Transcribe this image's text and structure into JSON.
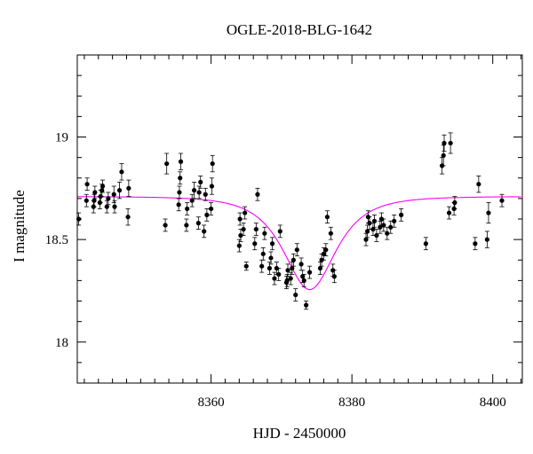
{
  "chart_data": {
    "type": "scatter",
    "title": "OGLE-2018-BLG-1642",
    "xlabel": "HJD - 2450000",
    "ylabel": "I magnitude",
    "xlim": [
      8341.0,
      8404.2
    ],
    "ylim": [
      19.4,
      17.8
    ],
    "y_inverted": true,
    "x_ticks": [
      8360,
      8380,
      8400
    ],
    "x_tick_labels": [
      "8360",
      "8380",
      "8400"
    ],
    "y_ticks": [
      18,
      18.5,
      19
    ],
    "y_tick_labels": [
      "18",
      "18.5",
      "19"
    ],
    "grid": false,
    "marker_color": "#000000",
    "model_color": "#ff00ff",
    "model": {
      "baseline_mag": 18.71,
      "t0": 8374.0,
      "u0": 0.81,
      "tE": 5.0
    },
    "series": [
      {
        "points": [
          [
            8341.2,
            18.6,
            0.03
          ],
          [
            8342.3,
            18.69,
            0.03
          ],
          [
            8342.4,
            18.77,
            0.03
          ],
          [
            8343.3,
            18.66,
            0.03
          ],
          [
            8343.4,
            18.69,
            0.03
          ],
          [
            8343.5,
            18.73,
            0.03
          ],
          [
            8344.2,
            18.68,
            0.03
          ],
          [
            8344.3,
            18.71,
            0.03
          ],
          [
            8344.5,
            18.74,
            0.03
          ],
          [
            8344.6,
            18.76,
            0.03
          ],
          [
            8345.2,
            18.66,
            0.03
          ],
          [
            8345.4,
            18.7,
            0.03
          ],
          [
            8346.2,
            18.72,
            0.04
          ],
          [
            8346.3,
            18.66,
            0.03
          ],
          [
            8347.0,
            18.74,
            0.04
          ],
          [
            8347.3,
            18.83,
            0.04
          ],
          [
            8348.2,
            18.61,
            0.04
          ],
          [
            8348.3,
            18.75,
            0.04
          ],
          [
            8353.5,
            18.57,
            0.03
          ],
          [
            8353.7,
            18.87,
            0.05
          ],
          [
            8355.4,
            18.67,
            0.03
          ],
          [
            8355.5,
            18.73,
            0.03
          ],
          [
            8355.6,
            18.8,
            0.03
          ],
          [
            8355.7,
            18.88,
            0.04
          ],
          [
            8356.5,
            18.57,
            0.03
          ],
          [
            8356.6,
            18.65,
            0.03
          ],
          [
            8357.3,
            18.69,
            0.03
          ],
          [
            8357.6,
            18.74,
            0.04
          ],
          [
            8358.2,
            18.58,
            0.03
          ],
          [
            8358.3,
            18.73,
            0.03
          ],
          [
            8358.5,
            18.78,
            0.03
          ],
          [
            8359.0,
            18.54,
            0.03
          ],
          [
            8359.2,
            18.72,
            0.03
          ],
          [
            8359.4,
            18.62,
            0.03
          ],
          [
            8360.0,
            18.65,
            0.03
          ],
          [
            8360.1,
            18.76,
            0.04
          ],
          [
            8360.2,
            18.87,
            0.04
          ],
          [
            8364.0,
            18.47,
            0.03
          ],
          [
            8364.1,
            18.6,
            0.03
          ],
          [
            8364.2,
            18.52,
            0.03
          ],
          [
            8364.6,
            18.55,
            0.03
          ],
          [
            8364.8,
            18.63,
            0.03
          ],
          [
            8365.0,
            18.37,
            0.02
          ],
          [
            8366.2,
            18.48,
            0.03
          ],
          [
            8366.4,
            18.55,
            0.03
          ],
          [
            8366.6,
            18.72,
            0.03
          ],
          [
            8367.2,
            18.37,
            0.03
          ],
          [
            8367.4,
            18.43,
            0.03
          ],
          [
            8367.6,
            18.53,
            0.03
          ],
          [
            8368.3,
            18.36,
            0.03
          ],
          [
            8368.5,
            18.41,
            0.03
          ],
          [
            8368.7,
            18.48,
            0.03
          ],
          [
            8369.0,
            18.31,
            0.03
          ],
          [
            8369.3,
            18.36,
            0.03
          ],
          [
            8369.6,
            18.33,
            0.03
          ],
          [
            8369.8,
            18.54,
            0.03
          ],
          [
            8370.7,
            18.29,
            0.03
          ],
          [
            8370.8,
            18.3,
            0.03
          ],
          [
            8370.9,
            18.35,
            0.03
          ],
          [
            8371.3,
            18.31,
            0.03
          ],
          [
            8371.5,
            18.36,
            0.03
          ],
          [
            8371.7,
            18.4,
            0.03
          ],
          [
            8372.0,
            18.23,
            0.03
          ],
          [
            8372.2,
            18.45,
            0.03
          ],
          [
            8372.8,
            18.38,
            0.03
          ],
          [
            8373.0,
            18.32,
            0.03
          ],
          [
            8373.2,
            18.3,
            0.03
          ],
          [
            8373.5,
            18.18,
            0.02
          ],
          [
            8374.0,
            18.34,
            0.03
          ],
          [
            8375.5,
            18.36,
            0.03
          ],
          [
            8375.7,
            18.4,
            0.03
          ],
          [
            8376.0,
            18.43,
            0.03
          ],
          [
            8376.3,
            18.45,
            0.03
          ],
          [
            8376.5,
            18.61,
            0.03
          ],
          [
            8377.0,
            18.53,
            0.03
          ],
          [
            8377.3,
            18.35,
            0.03
          ],
          [
            8377.5,
            18.32,
            0.03
          ],
          [
            8382.0,
            18.5,
            0.03
          ],
          [
            8382.2,
            18.54,
            0.03
          ],
          [
            8382.3,
            18.61,
            0.03
          ],
          [
            8382.5,
            18.58,
            0.03
          ],
          [
            8383.0,
            18.55,
            0.03
          ],
          [
            8383.2,
            18.59,
            0.03
          ],
          [
            8383.5,
            18.52,
            0.03
          ],
          [
            8384.0,
            18.56,
            0.03
          ],
          [
            8384.2,
            18.6,
            0.03
          ],
          [
            8384.5,
            18.57,
            0.03
          ],
          [
            8385.0,
            18.53,
            0.03
          ],
          [
            8385.5,
            18.56,
            0.03
          ],
          [
            8386.0,
            18.59,
            0.03
          ],
          [
            8387.0,
            18.62,
            0.03
          ],
          [
            8390.5,
            18.48,
            0.03
          ],
          [
            8392.8,
            18.86,
            0.04
          ],
          [
            8393.0,
            18.91,
            0.05
          ],
          [
            8393.1,
            18.97,
            0.04
          ],
          [
            8393.8,
            18.63,
            0.03
          ],
          [
            8394.0,
            18.97,
            0.05
          ],
          [
            8394.5,
            18.65,
            0.03
          ],
          [
            8394.6,
            18.68,
            0.03
          ],
          [
            8397.5,
            18.48,
            0.03
          ],
          [
            8398.0,
            18.77,
            0.04
          ],
          [
            8399.2,
            18.5,
            0.04
          ],
          [
            8399.4,
            18.63,
            0.05
          ],
          [
            8401.3,
            18.69,
            0.03
          ]
        ]
      }
    ]
  }
}
